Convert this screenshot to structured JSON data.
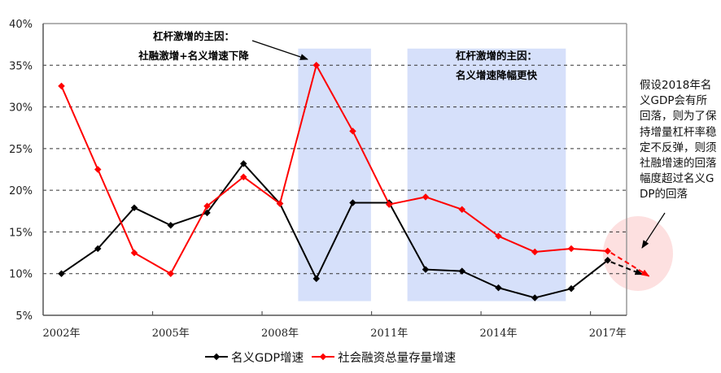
{
  "chart_data": {
    "type": "line",
    "title": "",
    "xlabel": "",
    "ylabel": "",
    "ylim": [
      5,
      40
    ],
    "y_ticks": [
      "5%",
      "10%",
      "15%",
      "20%",
      "25%",
      "30%",
      "35%",
      "40%"
    ],
    "x_tick_labels": [
      "2002年",
      "2005年",
      "2008年",
      "2011年",
      "2014年",
      "2017年"
    ],
    "x": [
      2002,
      2003,
      2004,
      2005,
      2006,
      2007,
      2008,
      2009,
      2010,
      2011,
      2012,
      2013,
      2014,
      2015,
      2016,
      2017
    ],
    "grid": "horizontal dashed",
    "legend_position": "bottom",
    "series": [
      {
        "name": "名义GDP增速",
        "color": "#000000",
        "values": [
          10.0,
          13.0,
          17.9,
          15.8,
          17.3,
          23.2,
          18.4,
          9.4,
          18.5,
          18.5,
          10.5,
          10.3,
          8.3,
          7.1,
          8.2,
          11.6
        ],
        "projection": {
          "x": 2018,
          "value": 9.9,
          "style": "dashed-arrow"
        }
      },
      {
        "name": "社会融资总量存量增速",
        "color": "#ff0000",
        "values": [
          32.5,
          22.5,
          12.5,
          10.0,
          18.1,
          21.6,
          18.4,
          35.0,
          27.1,
          18.3,
          19.2,
          17.7,
          14.5,
          12.6,
          13.0,
          12.7
        ],
        "projection": {
          "x": 2018,
          "value": 9.7,
          "style": "dashed-arrow"
        }
      }
    ],
    "shaded_regions": [
      {
        "x_from": 2008.5,
        "x_to": 2010.5,
        "y_from": 6.7,
        "y_to": 37,
        "color": "#d6e0fa"
      },
      {
        "x_from": 2011.5,
        "x_to": 2015.85,
        "y_from": 6.7,
        "y_to": 37,
        "color": "#d6e0fa"
      }
    ],
    "annotations": [
      {
        "lines": [
          "杠杆激增的主因：",
          "社融激增+名义增速下降"
        ],
        "arrow_to": {
          "x": 2009,
          "value": 35.0
        }
      },
      {
        "lines": [
          "杠杆激增的主因：",
          "名义增速降幅更快"
        ]
      },
      {
        "text": "假设2018年名义GDP会有所回落，则为了保持增量杠杆率稳定不反弹，则须社融增速的回落幅度超过名义GDP的回落",
        "arrow_to": "projection-circle"
      }
    ]
  },
  "annotations": {
    "box1_line1": "杠杆激增的主因：",
    "box1_line2": "社融激增+名义增速下降",
    "box2_line1": "杠杆激增的主因：",
    "box2_line2": "名义增速降幅更快",
    "side_note": "假设2018年名义GDP会有所回落，则为了保持增量杠杆率稳定不反弹，则须社融增速的回落幅度超过名义GDP的回落"
  },
  "legend": {
    "series1": "名义GDP增速",
    "series2": "社会融资总量存量增速"
  },
  "axis": {
    "y": [
      "40%",
      "35%",
      "30%",
      "25%",
      "20%",
      "15%",
      "10%",
      "5%"
    ],
    "x": [
      "2002年",
      "2005年",
      "2008年",
      "2011年",
      "2014年",
      "2017年"
    ]
  }
}
